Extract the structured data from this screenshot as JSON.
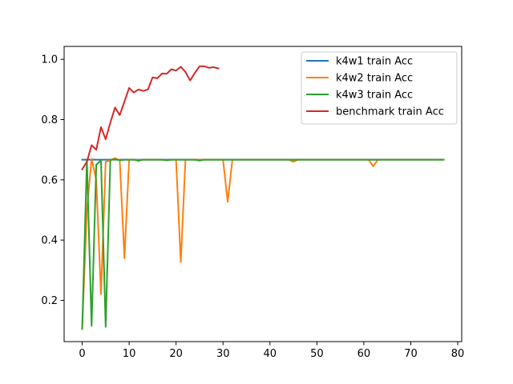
{
  "chart_data": {
    "type": "line",
    "title": "",
    "xlabel": "",
    "ylabel": "",
    "xlim": [
      -3.85,
      80.85
    ],
    "ylim": [
      0.063,
      1.043
    ],
    "xticks": [
      0,
      10,
      20,
      30,
      40,
      50,
      60,
      70,
      80
    ],
    "yticks": [
      0.2,
      0.4,
      0.6,
      0.8,
      1.0
    ],
    "xtick_labels": [
      "0",
      "10",
      "20",
      "30",
      "40",
      "50",
      "60",
      "70",
      "80"
    ],
    "ytick_labels": [
      "0.2",
      "0.4",
      "0.6",
      "0.8",
      "1.0"
    ],
    "grid": false,
    "legend_position": "top-right",
    "series": [
      {
        "name": "k4w1 train Acc",
        "color": "#1f77b4",
        "x": [
          0,
          77
        ],
        "y": [
          0.667,
          0.667
        ]
      },
      {
        "name": "k4w2 train Acc",
        "color": "#ff7f0e",
        "x": [
          0,
          1,
          2,
          3,
          4,
          5,
          6,
          7,
          8,
          9,
          10,
          11,
          12,
          13,
          14,
          15,
          16,
          17,
          18,
          19,
          20,
          21,
          22,
          23,
          24,
          25,
          26,
          27,
          28,
          29,
          30,
          31,
          32,
          33,
          40,
          44,
          45,
          46,
          47,
          48,
          60,
          61,
          62,
          63,
          64,
          77
        ],
        "y": [
          0.11,
          0.5,
          0.67,
          0.6,
          0.22,
          0.66,
          0.665,
          0.672,
          0.665,
          0.34,
          0.667,
          0.667,
          0.665,
          0.667,
          0.667,
          0.667,
          0.667,
          0.667,
          0.665,
          0.667,
          0.667,
          0.327,
          0.667,
          0.667,
          0.667,
          0.667,
          0.667,
          0.667,
          0.667,
          0.667,
          0.667,
          0.527,
          0.667,
          0.667,
          0.667,
          0.667,
          0.66,
          0.667,
          0.667,
          0.667,
          0.667,
          0.667,
          0.645,
          0.667,
          0.667,
          0.667
        ]
      },
      {
        "name": "k4w3 train Acc",
        "color": "#2ca02c",
        "x": [
          0,
          1,
          2,
          3,
          4,
          5,
          6,
          7,
          8,
          9,
          10,
          11,
          12,
          13,
          14,
          15,
          16,
          17,
          18,
          19,
          20,
          21,
          22,
          23,
          24,
          25,
          26,
          27,
          28,
          29,
          30,
          77
        ],
        "y": [
          0.105,
          0.667,
          0.115,
          0.65,
          0.665,
          0.112,
          0.667,
          0.668,
          0.665,
          0.667,
          0.667,
          0.667,
          0.663,
          0.667,
          0.667,
          0.667,
          0.667,
          0.667,
          0.665,
          0.667,
          0.667,
          0.667,
          0.667,
          0.667,
          0.667,
          0.664,
          0.667,
          0.667,
          0.667,
          0.667,
          0.667,
          0.667
        ]
      },
      {
        "name": "benchmark train Acc",
        "color": "#d62728",
        "x": [
          0,
          1,
          2,
          3,
          4,
          5,
          6,
          7,
          8,
          9,
          10,
          11,
          12,
          13,
          14,
          15,
          16,
          17,
          18,
          19,
          20,
          21,
          22,
          23,
          24,
          25,
          26,
          27,
          28,
          29
        ],
        "y": [
          0.635,
          0.66,
          0.715,
          0.7,
          0.775,
          0.735,
          0.79,
          0.84,
          0.815,
          0.86,
          0.905,
          0.89,
          0.9,
          0.895,
          0.9,
          0.94,
          0.937,
          0.953,
          0.952,
          0.967,
          0.963,
          0.975,
          0.958,
          0.93,
          0.955,
          0.977,
          0.977,
          0.972,
          0.974,
          0.97
        ]
      }
    ]
  }
}
